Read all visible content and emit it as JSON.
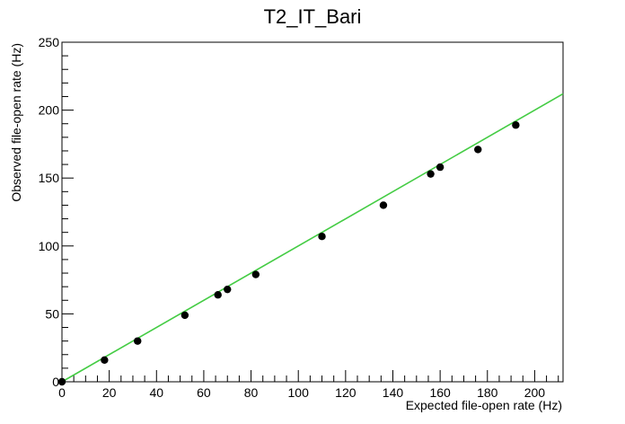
{
  "chart_data": {
    "type": "scatter",
    "title": "T2_IT_Bari",
    "xlabel": "Expected file-open rate (Hz)",
    "ylabel": "Observed file-open rate (Hz)",
    "xlim": [
      0,
      212
    ],
    "ylim": [
      0,
      250
    ],
    "x_ticks": [
      "0",
      "20",
      "40",
      "60",
      "80",
      "100",
      "120",
      "140",
      "160",
      "180",
      "200"
    ],
    "y_ticks": [
      "0",
      "50",
      "100",
      "150",
      "200",
      "250"
    ],
    "grid": false,
    "legend": "none",
    "series": [
      {
        "kind": "points",
        "color": "#000000",
        "points": [
          {
            "x": 0,
            "y": 0
          },
          {
            "x": 18,
            "y": 16
          },
          {
            "x": 32,
            "y": 30
          },
          {
            "x": 52,
            "y": 49
          },
          {
            "x": 66,
            "y": 64
          },
          {
            "x": 70,
            "y": 68
          },
          {
            "x": 82,
            "y": 79
          },
          {
            "x": 110,
            "y": 107
          },
          {
            "x": 136,
            "y": 130
          },
          {
            "x": 156,
            "y": 153
          },
          {
            "x": 160,
            "y": 158
          },
          {
            "x": 176,
            "y": 171
          },
          {
            "x": 192,
            "y": 189
          }
        ]
      },
      {
        "kind": "fit-line",
        "color": "#44cc44",
        "points": [
          {
            "x": 0,
            "y": 0
          },
          {
            "x": 212,
            "y": 212
          }
        ]
      }
    ]
  }
}
